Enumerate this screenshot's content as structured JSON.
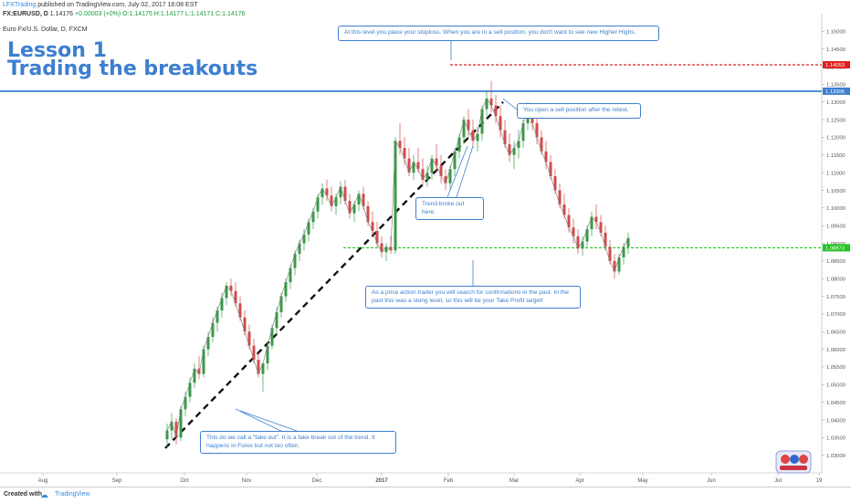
{
  "header": {
    "author": "LFXTrading",
    "published": "published on TradingView.com, July 02, 2017 16:08 EST",
    "symbol_line": "FX:EURUSD, D",
    "price": "1.14176",
    "change": "+0.00003 (+0%)",
    "ohlc": "O:1.14175 H:1.14177 L:1.14171 C:1.14176",
    "instrument": "Euro Fx/U.S. Dollar, D, FXCM"
  },
  "lesson": {
    "line1": "Lesson 1",
    "line2": "Trading the breakouts"
  },
  "annotations": {
    "stoploss": "At this level you place your stoploss. When you are in a sell position, you don't want to see new Higher Highs.",
    "sell": "You open a sell position after the retest.",
    "trend_broke": "Trend broke out here.",
    "take_profit": "As a price action trader you will search for confirmations in the past. In the past this was a stong level, so this will be your Take Profit target!",
    "fake_out": "This do we call a \"fake out\". It is a fake break out of the trend. It happens in Forex but not too often."
  },
  "footer": {
    "created_with": "Created with",
    "brand": "TradingView"
  },
  "colors": {
    "up": "#3a9a47",
    "down": "#d24c4c",
    "annotation": "#3d7fd0",
    "resistance": "#3d7fd0",
    "stop": "#e02020",
    "target": "#22c422"
  },
  "chart_data": {
    "type": "candlestick",
    "title": "Euro Fx/U.S. Dollar, D, FXCM",
    "ylim": [
      1.025,
      1.155
    ],
    "y_ticks": [
      "1.15000",
      "1.14500",
      "1.14000",
      "1.13500",
      "1.13000",
      "1.12500",
      "1.12000",
      "1.11500",
      "1.11000",
      "1.10500",
      "1.10000",
      "1.09500",
      "1.09000",
      "1.08500",
      "1.08000",
      "1.07500",
      "1.07000",
      "1.06500",
      "1.06000",
      "1.05500",
      "1.05000",
      "1.04500",
      "1.04000",
      "1.03500",
      "1.03000"
    ],
    "x_ticks": [
      "Aug",
      "Sep",
      "Oct",
      "Nov",
      "Dec",
      "2017",
      "Feb",
      "Mar",
      "Apr",
      "May",
      "Jun",
      "Jul",
      "19"
    ],
    "levels": [
      {
        "name": "stoploss",
        "value": 1.14053,
        "label": "1.14053",
        "style": "dashed",
        "color": "#e02020"
      },
      {
        "name": "resistance",
        "value": 1.13306,
        "label": "1.13306",
        "style": "solid",
        "color": "#3d7fd0"
      },
      {
        "name": "take-profit",
        "value": 1.08873,
        "label": "1.08873",
        "style": "dashed",
        "color": "#22c422"
      }
    ],
    "trendline": {
      "from": [
        "Sep 2016",
        1.032
      ],
      "to": [
        "Mar 2017",
        1.13
      ]
    },
    "candles": [
      [
        1.0345,
        1.039,
        1.032,
        1.037
      ],
      [
        1.037,
        1.042,
        1.0345,
        1.0395
      ],
      [
        1.0395,
        1.0405,
        1.033,
        1.035
      ],
      [
        1.035,
        1.044,
        1.034,
        1.043
      ],
      [
        1.043,
        1.048,
        1.041,
        1.0465
      ],
      [
        1.0465,
        1.052,
        1.045,
        1.0505
      ],
      [
        1.0505,
        1.056,
        1.049,
        1.0545
      ],
      [
        1.0545,
        1.058,
        1.0515,
        1.053
      ],
      [
        1.053,
        1.061,
        1.052,
        1.06
      ],
      [
        1.06,
        1.065,
        1.058,
        1.0635
      ],
      [
        1.0635,
        1.069,
        1.062,
        1.0675
      ],
      [
        1.0675,
        1.072,
        1.065,
        1.071
      ],
      [
        1.071,
        1.076,
        1.069,
        1.0745
      ],
      [
        1.0745,
        1.079,
        1.0725,
        1.078
      ],
      [
        1.078,
        1.08,
        1.075,
        1.0765
      ],
      [
        1.0765,
        1.079,
        1.072,
        1.073
      ],
      [
        1.073,
        1.075,
        1.068,
        1.069
      ],
      [
        1.069,
        1.071,
        1.064,
        1.065
      ],
      [
        1.065,
        1.067,
        1.06,
        1.061
      ],
      [
        1.061,
        1.063,
        1.056,
        1.057
      ],
      [
        1.057,
        1.059,
        1.052,
        1.053
      ],
      [
        1.053,
        1.056,
        1.048,
        1.056
      ],
      [
        1.056,
        1.062,
        1.054,
        1.061
      ],
      [
        1.061,
        1.067,
        1.06,
        1.066
      ],
      [
        1.066,
        1.072,
        1.064,
        1.0705
      ],
      [
        1.0705,
        1.076,
        1.069,
        1.075
      ],
      [
        1.075,
        1.08,
        1.0735,
        1.079
      ],
      [
        1.079,
        1.084,
        1.077,
        1.083
      ],
      [
        1.083,
        1.088,
        1.081,
        1.087
      ],
      [
        1.087,
        1.091,
        1.085,
        1.09
      ],
      [
        1.09,
        1.094,
        1.088,
        1.0925
      ],
      [
        1.0925,
        1.097,
        1.0905,
        1.096
      ],
      [
        1.096,
        1.1,
        1.094,
        1.099
      ],
      [
        1.099,
        1.104,
        1.097,
        1.103
      ],
      [
        1.103,
        1.107,
        1.101,
        1.1055
      ],
      [
        1.1055,
        1.108,
        1.102,
        1.1035
      ],
      [
        1.1035,
        1.106,
        1.099,
        1.1005
      ],
      [
        1.1005,
        1.104,
        1.098,
        1.103
      ],
      [
        1.103,
        1.1075,
        1.101,
        1.106
      ],
      [
        1.106,
        1.108,
        1.101,
        1.102
      ],
      [
        1.102,
        1.104,
        1.097,
        1.0985
      ],
      [
        1.0985,
        1.102,
        1.096,
        1.101
      ],
      [
        1.101,
        1.105,
        1.099,
        1.104
      ],
      [
        1.104,
        1.106,
        1.0995,
        1.1005
      ],
      [
        1.1005,
        1.102,
        1.095,
        1.096
      ],
      [
        1.096,
        1.099,
        1.092,
        1.0935
      ],
      [
        1.0935,
        1.096,
        1.089,
        1.09
      ],
      [
        1.09,
        1.092,
        1.086,
        1.0875
      ],
      [
        1.0875,
        1.09,
        1.085,
        1.089
      ],
      [
        1.089,
        1.092,
        1.087,
        1.088
      ],
      [
        1.088,
        1.12,
        1.087,
        1.119
      ],
      [
        1.119,
        1.124,
        1.115,
        1.117
      ],
      [
        1.117,
        1.12,
        1.112,
        1.114
      ],
      [
        1.114,
        1.117,
        1.109,
        1.11
      ],
      [
        1.11,
        1.115,
        1.108,
        1.113
      ],
      [
        1.113,
        1.117,
        1.11,
        1.111
      ],
      [
        1.111,
        1.114,
        1.106,
        1.108
      ],
      [
        1.108,
        1.112,
        1.106,
        1.11
      ],
      [
        1.11,
        1.115,
        1.108,
        1.114
      ],
      [
        1.114,
        1.118,
        1.11,
        1.112
      ],
      [
        1.112,
        1.115,
        1.107,
        1.109
      ],
      [
        1.109,
        1.111,
        1.105,
        1.107
      ],
      [
        1.107,
        1.112,
        1.105,
        1.111
      ],
      [
        1.111,
        1.117,
        1.109,
        1.116
      ],
      [
        1.116,
        1.121,
        1.114,
        1.12
      ],
      [
        1.12,
        1.126,
        1.118,
        1.125
      ],
      [
        1.125,
        1.128,
        1.12,
        1.122
      ],
      [
        1.122,
        1.125,
        1.117,
        1.119
      ],
      [
        1.119,
        1.123,
        1.116,
        1.121
      ],
      [
        1.121,
        1.129,
        1.119,
        1.128
      ],
      [
        1.128,
        1.133,
        1.126,
        1.131
      ],
      [
        1.131,
        1.136,
        1.127,
        1.129
      ],
      [
        1.129,
        1.132,
        1.124,
        1.126
      ],
      [
        1.126,
        1.129,
        1.12,
        1.122
      ],
      [
        1.122,
        1.125,
        1.117,
        1.118
      ],
      [
        1.118,
        1.121,
        1.113,
        1.115
      ],
      [
        1.115,
        1.119,
        1.111,
        1.117
      ],
      [
        1.117,
        1.122,
        1.114,
        1.119
      ],
      [
        1.119,
        1.125,
        1.117,
        1.124
      ],
      [
        1.124,
        1.13,
        1.122,
        1.128
      ],
      [
        1.128,
        1.129,
        1.122,
        1.124
      ],
      [
        1.124,
        1.126,
        1.118,
        1.12
      ],
      [
        1.12,
        1.122,
        1.115,
        1.116
      ],
      [
        1.116,
        1.119,
        1.111,
        1.113
      ],
      [
        1.113,
        1.115,
        1.108,
        1.109
      ],
      [
        1.109,
        1.111,
        1.104,
        1.105
      ],
      [
        1.105,
        1.107,
        1.1,
        1.101
      ],
      [
        1.101,
        1.104,
        1.097,
        1.098
      ],
      [
        1.098,
        1.1,
        1.093,
        1.0945
      ],
      [
        1.0945,
        1.097,
        1.09,
        1.092
      ],
      [
        1.092,
        1.094,
        1.087,
        1.0885
      ],
      [
        1.0885,
        1.092,
        1.0865,
        1.0905
      ],
      [
        1.0905,
        1.095,
        1.089,
        1.094
      ],
      [
        1.094,
        1.099,
        1.092,
        1.0975
      ],
      [
        1.0975,
        1.101,
        1.094,
        1.096
      ],
      [
        1.096,
        1.098,
        1.092,
        1.093
      ],
      [
        1.093,
        1.095,
        1.088,
        1.089
      ],
      [
        1.089,
        1.091,
        1.084,
        1.085
      ],
      [
        1.085,
        1.087,
        1.08,
        1.082
      ],
      [
        1.082,
        1.087,
        1.081,
        1.086
      ],
      [
        1.086,
        1.09,
        1.084,
        1.089
      ],
      [
        1.089,
        1.093,
        1.087,
        1.0915
      ]
    ]
  }
}
